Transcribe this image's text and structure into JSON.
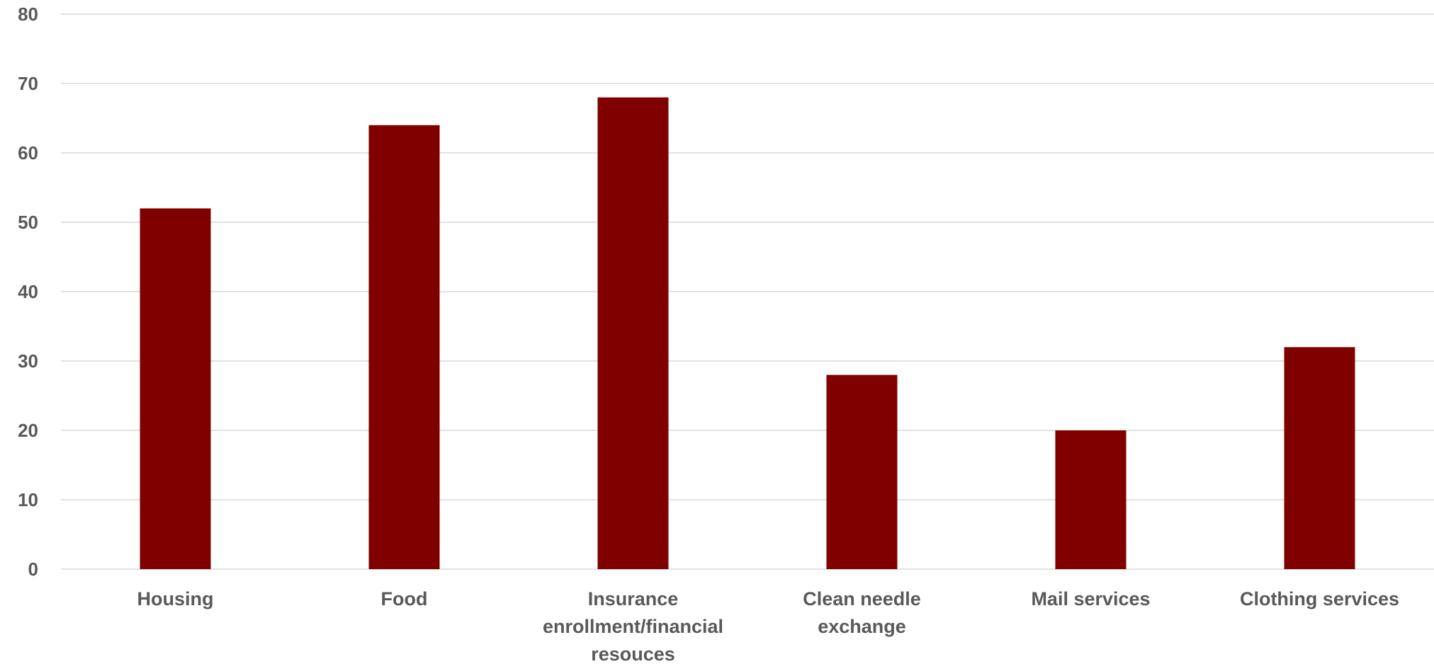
{
  "chart_data": {
    "type": "bar",
    "title": "",
    "xlabel": "",
    "ylabel": "",
    "categories": [
      "Housing",
      "Food",
      "Insurance enrollment/financial resouces",
      "Clean needle exchange",
      "Mail services",
      "Clothing services"
    ],
    "category_lines": [
      [
        "Housing"
      ],
      [
        "Food"
      ],
      [
        "Insurance",
        "enrollment/financial",
        "resouces"
      ],
      [
        "Clean needle",
        "exchange"
      ],
      [
        "Mail services"
      ],
      [
        "Clothing services"
      ]
    ],
    "values": [
      52,
      64,
      68,
      28,
      20,
      32
    ],
    "ylim": [
      0,
      80
    ],
    "yticks": [
      0,
      10,
      20,
      30,
      40,
      50,
      60,
      70,
      80
    ],
    "grid": true,
    "legend": "none",
    "bar_color": "#800000"
  }
}
